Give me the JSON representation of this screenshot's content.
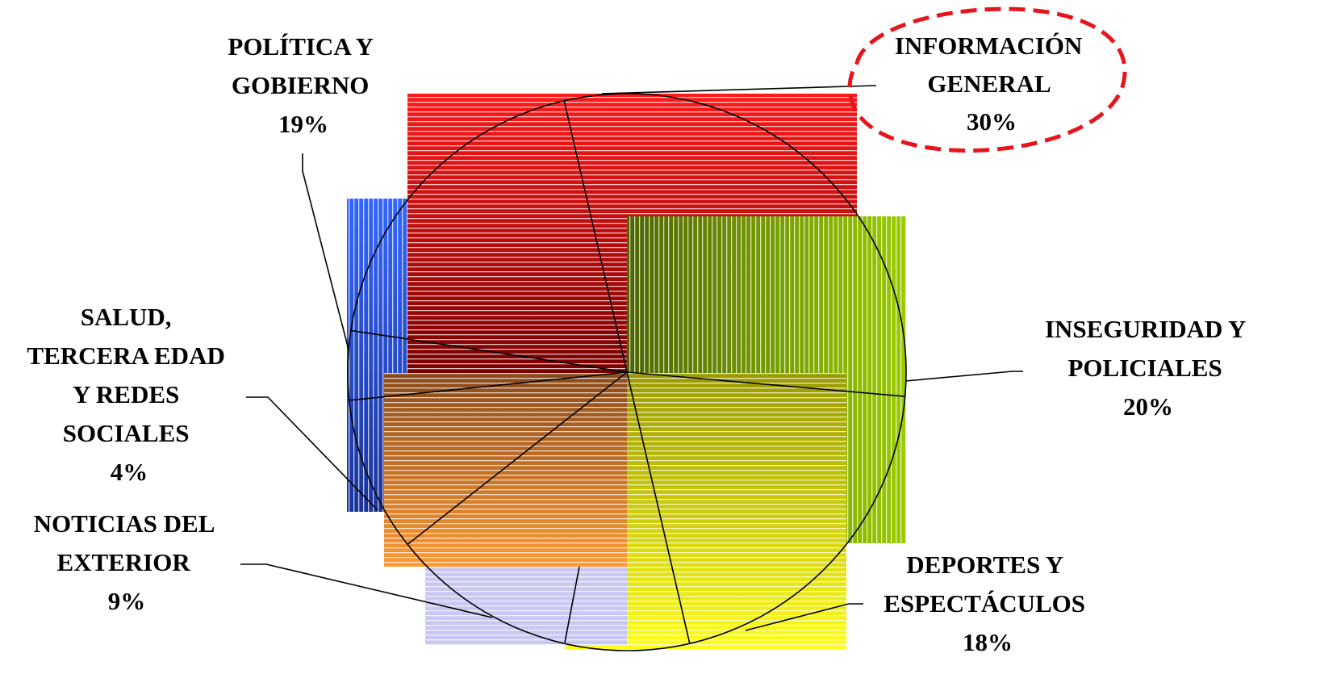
{
  "chart_data": {
    "type": "pie",
    "title": "",
    "slices": [
      {
        "label": [
          "INFORMACIÓN",
          "GENERAL"
        ],
        "pct": "30%",
        "value": 30,
        "color": "#ff1a1a",
        "dark": "#7a0000"
      },
      {
        "label": [
          "INSEGURIDAD Y",
          "POLICIALES"
        ],
        "pct": "20%",
        "value": 20,
        "color": "#99cc00",
        "dark": "#4d6600"
      },
      {
        "label": [
          "DEPORTES Y",
          "ESPECTÁCULOS"
        ],
        "pct": "18%",
        "value": 18,
        "color": "#ffff1a",
        "dark": "#b3b300"
      },
      {
        "label": [
          "NOTICIAS DEL",
          "EXTERIOR"
        ],
        "pct": "9%",
        "value": 9,
        "color": "#bbbbee",
        "dark": "#ccccf5"
      },
      {
        "label": [
          "SALUD,",
          "TERCERA EDAD",
          "Y REDES",
          "SOCIALES"
        ],
        "pct": "4%",
        "value": 4,
        "color": "#ff9933",
        "dark": "#8a4a1a"
      },
      {
        "label": [
          "POLÍTICA Y",
          "GOBIERNO"
        ],
        "pct": "19%",
        "value": 19,
        "color": "#3366ff",
        "dark": "#1a3399"
      }
    ],
    "annotation": {
      "highlighted_slice": "INFORMACIÓN GENERAL",
      "style": "red dashed ellipse"
    },
    "legend": "none (labels outside slices)"
  }
}
